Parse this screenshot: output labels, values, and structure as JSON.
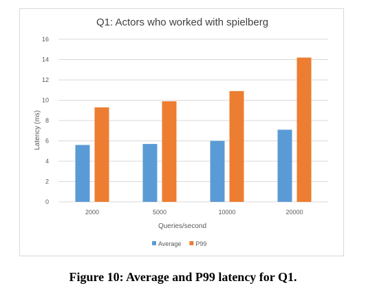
{
  "figure": {
    "caption": "Figure 10: Average and P99 latency for Q1."
  },
  "colors": {
    "average": "#5b9bd5",
    "p99": "#ed7d31",
    "grid": "#d9d9d9",
    "text": "#595959"
  },
  "chart_data": {
    "type": "bar",
    "title": "Q1: Actors who worked with spielberg",
    "xlabel": "Queries/second",
    "ylabel": "Latency (ms)",
    "categories": [
      "2000",
      "5000",
      "10000",
      "20000"
    ],
    "series": [
      {
        "name": "Average",
        "values": [
          5.6,
          5.7,
          6.0,
          7.1
        ]
      },
      {
        "name": "P99",
        "values": [
          9.3,
          9.9,
          10.9,
          14.2
        ]
      }
    ],
    "ylim": [
      0,
      16
    ],
    "yticks": [
      0,
      2,
      4,
      6,
      8,
      10,
      12,
      14,
      16
    ],
    "grid": true,
    "legend_position": "bottom"
  }
}
